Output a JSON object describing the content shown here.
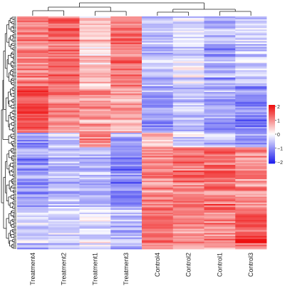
{
  "chart_data": {
    "type": "heatmap",
    "title": "",
    "xlabel": "",
    "ylabel": "",
    "samples": [
      "Treatment4",
      "Treatment2",
      "Treatment1",
      "Treatment3",
      "Control4",
      "Control2",
      "Control1",
      "Control3"
    ],
    "color_scale": {
      "min": -2,
      "max": 2,
      "low_color": "#2222ee",
      "mid_color": "#ffffff",
      "high_color": "#ee1111",
      "ticks": [
        "2",
        "1",
        "0",
        "−1",
        "−2"
      ]
    },
    "row_clustered": true,
    "column_clustered": true,
    "row_count": 160,
    "blocks": [
      {
        "rows": 48,
        "means": [
          1.0,
          1.2,
          0.4,
          1.1,
          -0.6,
          -0.3,
          -0.8,
          -0.5
        ]
      },
      {
        "rows": 32,
        "means": [
          1.4,
          1.0,
          0.8,
          0.7,
          -0.9,
          -0.6,
          -0.8,
          -1.0
        ]
      },
      {
        "rows": 10,
        "means": [
          -1.0,
          -0.6,
          1.1,
          -0.9,
          0.3,
          -0.3,
          -0.5,
          -0.9
        ]
      },
      {
        "rows": 43,
        "means": [
          -0.9,
          -0.6,
          -0.7,
          -1.1,
          1.0,
          1.1,
          1.2,
          0.9
        ]
      },
      {
        "rows": 27,
        "means": [
          -0.5,
          -0.4,
          -0.3,
          -0.6,
          1.1,
          0.9,
          0.9,
          1.4
        ]
      }
    ]
  }
}
